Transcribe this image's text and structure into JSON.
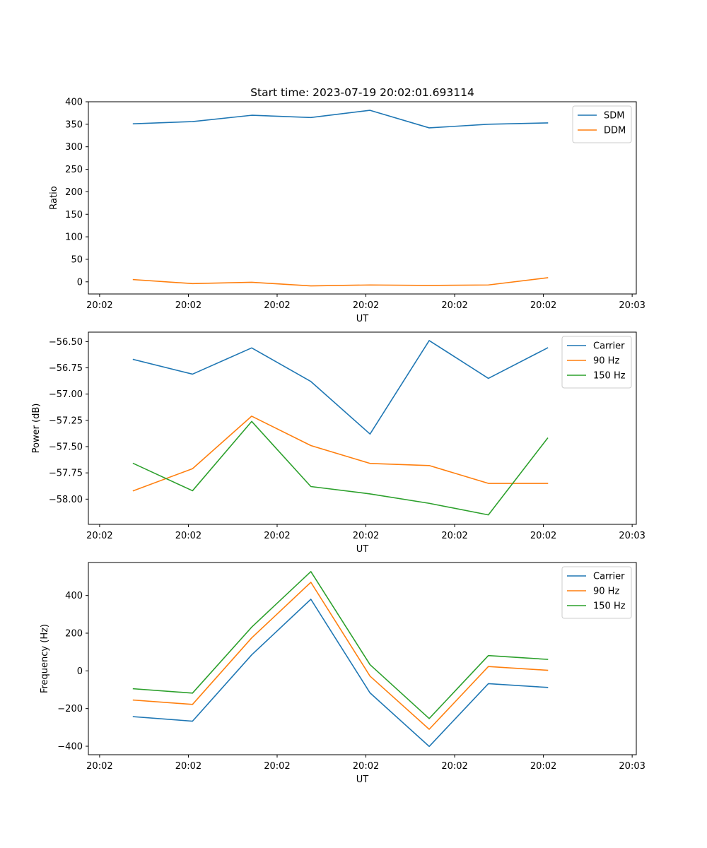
{
  "title": "Start time: 2023-07-19 20:02:01.693114",
  "chart_data": [
    {
      "type": "line",
      "ylabel": "Ratio",
      "xlabel": "UT",
      "x": [
        1,
        2,
        3,
        4,
        5,
        6,
        7,
        8
      ],
      "xlim": [
        0.24,
        9.5
      ],
      "xticks": [
        0.43,
        1.93,
        3.43,
        4.93,
        6.43,
        7.93,
        9.43
      ],
      "xtick_labels": [
        "20:02",
        "20:02",
        "20:02",
        "20:02",
        "20:02",
        "20:02",
        "20:03"
      ],
      "ylim": [
        -27,
        400
      ],
      "yticks": [
        0,
        50,
        100,
        150,
        200,
        250,
        300,
        350,
        400
      ],
      "ytick_labels": [
        "0",
        "50",
        "100",
        "150",
        "200",
        "250",
        "300",
        "350",
        "400"
      ],
      "legend_loc": "top-right",
      "series": [
        {
          "name": "SDM",
          "color": "#1f77b4",
          "values": [
            351,
            356,
            370,
            365,
            381,
            342,
            350,
            353
          ]
        },
        {
          "name": "DDM",
          "color": "#ff7f0e",
          "values": [
            5,
            -4,
            -1,
            -9,
            -7,
            -8,
            -7,
            9
          ]
        }
      ]
    },
    {
      "type": "line",
      "ylabel": "Power (dB)",
      "xlabel": "UT",
      "x": [
        1,
        2,
        3,
        4,
        5,
        6,
        7,
        8
      ],
      "xlim": [
        0.24,
        9.5
      ],
      "xticks": [
        0.43,
        1.93,
        3.43,
        4.93,
        6.43,
        7.93,
        9.43
      ],
      "xtick_labels": [
        "20:02",
        "20:02",
        "20:02",
        "20:02",
        "20:02",
        "20:02",
        "20:03"
      ],
      "ylim": [
        -58.24,
        -56.41
      ],
      "yticks": [
        -58.0,
        -57.75,
        -57.5,
        -57.25,
        -57.0,
        -56.75,
        -56.5
      ],
      "ytick_labels": [
        "−58.00",
        "−57.75",
        "−57.50",
        "−57.25",
        "−57.00",
        "−56.75",
        "−56.50"
      ],
      "legend_loc": "top-right",
      "series": [
        {
          "name": "Carrier",
          "color": "#1f77b4",
          "values": [
            -56.67,
            -56.81,
            -56.56,
            -56.88,
            -57.38,
            -56.49,
            -56.85,
            -56.56
          ]
        },
        {
          "name": "90 Hz",
          "color": "#ff7f0e",
          "values": [
            -57.92,
            -57.71,
            -57.21,
            -57.49,
            -57.66,
            -57.68,
            -57.85,
            -57.85
          ]
        },
        {
          "name": "150 Hz",
          "color": "#2ca02c",
          "values": [
            -57.66,
            -57.92,
            -57.26,
            -57.88,
            -57.95,
            -58.04,
            -58.15,
            -57.42
          ]
        }
      ]
    },
    {
      "type": "line",
      "ylabel": "Frequency (Hz)",
      "xlabel": "UT",
      "x": [
        1,
        2,
        3,
        4,
        5,
        6,
        7,
        8
      ],
      "xlim": [
        0.24,
        9.5
      ],
      "xticks": [
        0.43,
        1.93,
        3.43,
        4.93,
        6.43,
        7.93,
        9.43
      ],
      "xtick_labels": [
        "20:02",
        "20:02",
        "20:02",
        "20:02",
        "20:02",
        "20:02",
        "20:03"
      ],
      "ylim": [
        -445,
        575
      ],
      "yticks": [
        -400,
        -200,
        0,
        200,
        400
      ],
      "ytick_labels": [
        "−400",
        "−200",
        "0",
        "200",
        "400"
      ],
      "legend_loc": "top-right",
      "series": [
        {
          "name": "Carrier",
          "color": "#1f77b4",
          "values": [
            -243,
            -267,
            85,
            380,
            -117,
            -401,
            -68,
            -88
          ]
        },
        {
          "name": "90 Hz",
          "color": "#ff7f0e",
          "values": [
            -155,
            -178,
            175,
            470,
            -28,
            -310,
            23,
            3
          ]
        },
        {
          "name": "150 Hz",
          "color": "#2ca02c",
          "values": [
            -95,
            -118,
            232,
            527,
            33,
            -253,
            81,
            61
          ]
        }
      ]
    }
  ]
}
